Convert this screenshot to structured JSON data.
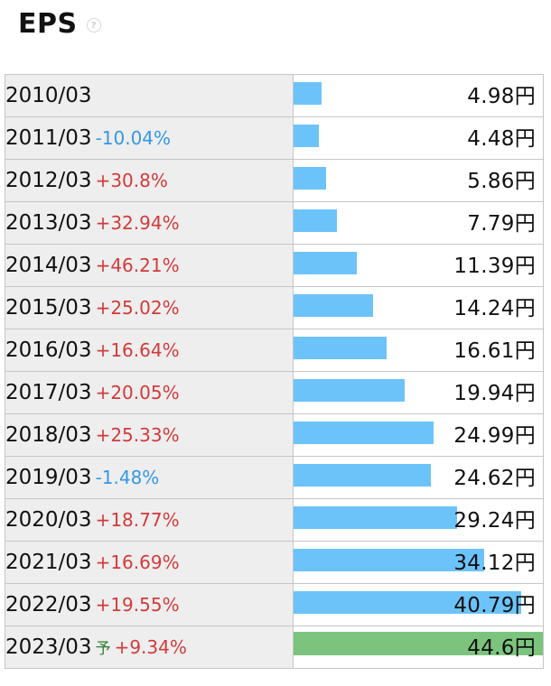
{
  "header": {
    "title": "EPS",
    "help_icon": "question-circle-icon"
  },
  "colors": {
    "bar": "#6cc3fa",
    "forecast_bar": "#7cc47e",
    "increase": "#d23b3b",
    "decrease": "#3598e6"
  },
  "chart_data": {
    "type": "bar",
    "orientation": "horizontal",
    "title": "EPS",
    "unit": "円",
    "categories": [
      "2010/03",
      "2011/03",
      "2012/03",
      "2013/03",
      "2014/03",
      "2015/03",
      "2016/03",
      "2017/03",
      "2018/03",
      "2019/03",
      "2020/03",
      "2021/03",
      "2022/03",
      "2023/03"
    ],
    "values": [
      4.98,
      4.48,
      5.86,
      7.79,
      11.39,
      14.24,
      16.61,
      19.94,
      24.99,
      24.62,
      29.24,
      34.12,
      40.79,
      44.6
    ],
    "rows": [
      {
        "period": "2010/03",
        "change": "",
        "value_label": "4.98円",
        "value": 4.98
      },
      {
        "period": "2011/03",
        "change": "-10.04%",
        "value_label": "4.48円",
        "value": 4.48
      },
      {
        "period": "2012/03",
        "change": "+30.8%",
        "value_label": "5.86円",
        "value": 5.86
      },
      {
        "period": "2013/03",
        "change": "+32.94%",
        "value_label": "7.79円",
        "value": 7.79
      },
      {
        "period": "2014/03",
        "change": "+46.21%",
        "value_label": "11.39円",
        "value": 11.39
      },
      {
        "period": "2015/03",
        "change": "+25.02%",
        "value_label": "14.24円",
        "value": 14.24
      },
      {
        "period": "2016/03",
        "change": "+16.64%",
        "value_label": "16.61円",
        "value": 16.61
      },
      {
        "period": "2017/03",
        "change": "+20.05%",
        "value_label": "19.94円",
        "value": 19.94
      },
      {
        "period": "2018/03",
        "change": "+25.33%",
        "value_label": "24.99円",
        "value": 24.99
      },
      {
        "period": "2019/03",
        "change": "-1.48%",
        "value_label": "24.62円",
        "value": 24.62
      },
      {
        "period": "2020/03",
        "change": "+18.77%",
        "value_label": "29.24円",
        "value": 29.24
      },
      {
        "period": "2021/03",
        "change": "+16.69%",
        "value_label": "34.12円",
        "value": 34.12
      },
      {
        "period": "2022/03",
        "change": "+19.55%",
        "value_label": "40.79円",
        "value": 40.79
      },
      {
        "period": "2023/03",
        "change": "+9.34%",
        "value_label": "44.6円",
        "value": 44.6,
        "forecast": true,
        "forecast_mark": "予"
      }
    ]
  }
}
